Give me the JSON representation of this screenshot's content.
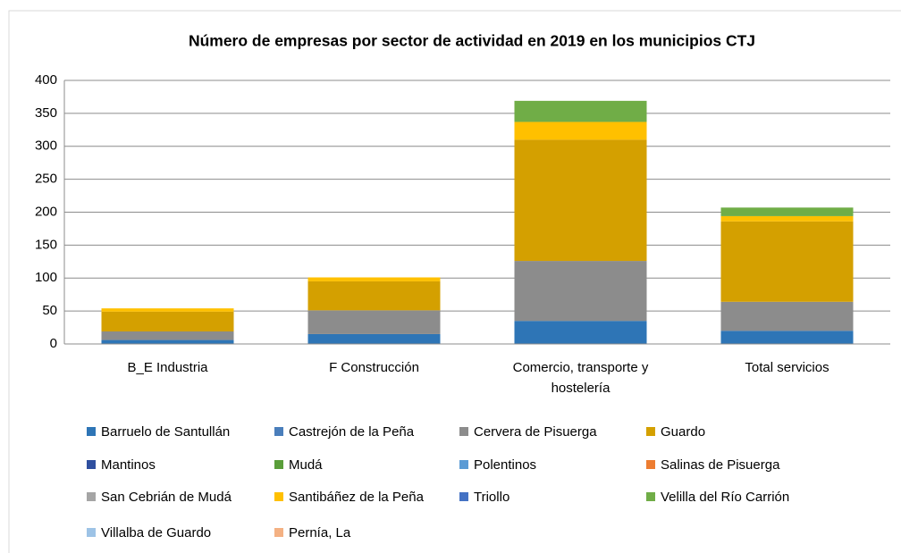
{
  "chart_data": {
    "type": "stacked_bar",
    "title": "Número de empresas por sector de actividad en 2019 en los municipios CTJ",
    "categories": [
      "B_E Industria",
      "F Construcción",
      "Comercio, transporte y hostelería",
      "Total servicios"
    ],
    "series": [
      {
        "name": "Barruelo de Santullán",
        "color": "#2e75b6",
        "values": [
          6,
          15,
          35,
          20
        ]
      },
      {
        "name": "Castrejón de la Peña",
        "color": "#4a7ebb",
        "values": [
          0,
          0,
          0,
          0
        ]
      },
      {
        "name": "Cervera de Pisuerga",
        "color": "#8c8c8c",
        "values": [
          13,
          36,
          91,
          44
        ]
      },
      {
        "name": "Guardo",
        "color": "#d4a000",
        "values": [
          30,
          44,
          184,
          122
        ]
      },
      {
        "name": "Mantinos",
        "color": "#2f4f9f",
        "values": [
          0,
          0,
          0,
          0
        ]
      },
      {
        "name": "Mudá",
        "color": "#5a9e3a",
        "values": [
          0,
          0,
          0,
          0
        ]
      },
      {
        "name": "Polentinos",
        "color": "#5b9bd5",
        "values": [
          0,
          0,
          0,
          0
        ]
      },
      {
        "name": "Salinas de Pisuerga",
        "color": "#ed7d31",
        "values": [
          0,
          0,
          0,
          0
        ]
      },
      {
        "name": "San Cebrián de Mudá",
        "color": "#a5a5a5",
        "values": [
          0,
          0,
          0,
          0
        ]
      },
      {
        "name": "Santibáñez de la Peña",
        "color": "#ffc000",
        "values": [
          5,
          6,
          27,
          8
        ]
      },
      {
        "name": "Triollo",
        "color": "#4472c4",
        "values": [
          0,
          0,
          0,
          0
        ]
      },
      {
        "name": "Velilla del Río Carrión",
        "color": "#70ad47",
        "values": [
          0,
          0,
          32,
          13
        ]
      },
      {
        "name": "Villalba de Guardo",
        "color": "#9dc3e6",
        "values": [
          0,
          0,
          0,
          0
        ]
      },
      {
        "name": "Pernía, La",
        "color": "#f4b183",
        "values": [
          0,
          0,
          0,
          0
        ]
      }
    ],
    "ylim": [
      0,
      400
    ],
    "yticks": [
      0,
      50,
      100,
      150,
      200,
      250,
      300,
      350,
      400
    ],
    "grid": true
  }
}
